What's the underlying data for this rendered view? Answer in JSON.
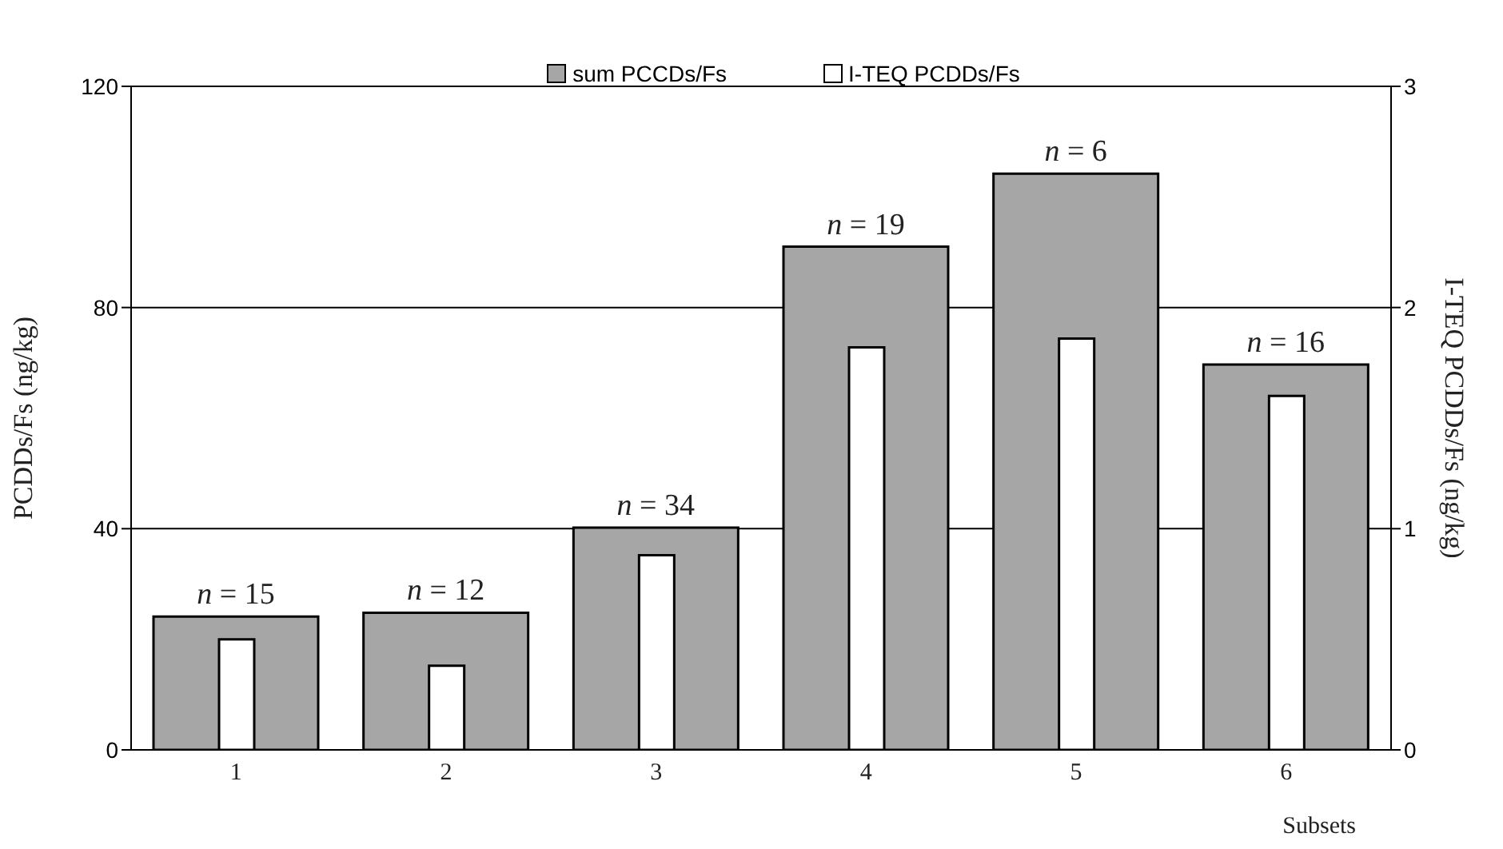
{
  "chart_data": {
    "type": "bar",
    "xlabel": "Subsets",
    "ylabel": "PCDDs/Fs (ng/kg)",
    "y2label": "I-TEQ PCDDs/Fs (ng/kg)",
    "categories": [
      "1",
      "2",
      "3",
      "4",
      "5",
      "6"
    ],
    "series": [
      {
        "name": "sum PCCDs/Fs",
        "color": "#a6a6a6",
        "values": [
          24.1,
          24.8,
          40.2,
          91.0,
          104.2,
          69.7
        ]
      },
      {
        "name": "I-TEQ PCDDs/Fs",
        "color": "#ffffff",
        "axis": "y2",
        "values": [
          0.5,
          0.38,
          0.88,
          1.82,
          1.86,
          1.6
        ]
      }
    ],
    "ylim": [
      0,
      120
    ],
    "yticks": [
      0,
      40,
      80,
      120
    ],
    "y2lim": [
      0,
      3
    ],
    "y2ticks": [
      0,
      1,
      2,
      3
    ],
    "annotations": [
      {
        "text": "n = 15",
        "x": "1",
        "y": 24.1
      },
      {
        "text": "n = 12",
        "x": "2",
        "y": 24.8
      },
      {
        "text": "n = 34",
        "x": "3",
        "y": 40.2
      },
      {
        "text": "n = 19",
        "x": "4",
        "y": 91.0
      },
      {
        "text": "n = 6",
        "x": "5",
        "y": 104.2
      },
      {
        "text": "n = 16",
        "x": "6",
        "y": 69.7
      }
    ],
    "grid": "y",
    "legend": "top"
  }
}
